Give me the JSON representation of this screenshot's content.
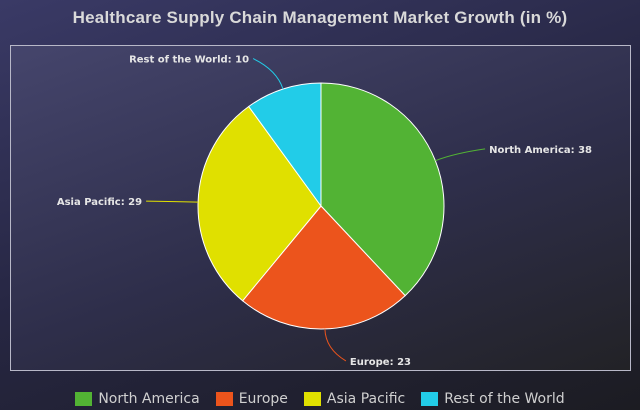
{
  "chart_data": {
    "type": "pie",
    "title": "Healthcare Supply Chain Management Market Growth (in %)",
    "categories": [
      "North America",
      "Europe",
      "Asia Pacific",
      "Rest of the World"
    ],
    "values": [
      38,
      23,
      29,
      10
    ],
    "colors": [
      "#52b334",
      "#ec541c",
      "#e0e000",
      "#22cce8"
    ],
    "legend_position": "bottom"
  }
}
